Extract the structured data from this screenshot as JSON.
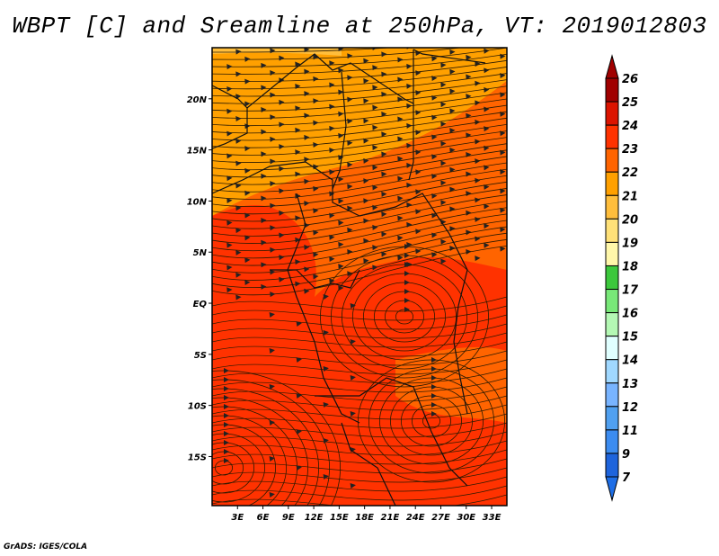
{
  "title": "WBPT [C] and Sreamline at 250hPa, VT: 2019012803",
  "credit": "GrADS: IGES/COLA",
  "map": {
    "lat_labels": [
      {
        "lat": 20,
        "text": "20N"
      },
      {
        "lat": 15,
        "text": "15N"
      },
      {
        "lat": 10,
        "text": "10N"
      },
      {
        "lat": 5,
        "text": "5N"
      },
      {
        "lat": 0,
        "text": "EQ"
      },
      {
        "lat": -5,
        "text": "5S"
      },
      {
        "lat": -10,
        "text": "10S"
      },
      {
        "lat": -15,
        "text": "15S"
      }
    ],
    "lon_labels": [
      {
        "lon": 3,
        "text": "3E"
      },
      {
        "lon": 6,
        "text": "6E"
      },
      {
        "lon": 9,
        "text": "9E"
      },
      {
        "lon": 12,
        "text": "12E"
      },
      {
        "lon": 15,
        "text": "15E"
      },
      {
        "lon": 18,
        "text": "18E"
      },
      {
        "lon": 21,
        "text": "21E"
      },
      {
        "lon": 24,
        "text": "24E"
      },
      {
        "lon": 27,
        "text": "27E"
      },
      {
        "lon": 30,
        "text": "30E"
      },
      {
        "lon": 33,
        "text": "33E"
      }
    ],
    "lon_range": [
      0,
      34.8
    ],
    "lat_range": [
      -19.8,
      25
    ]
  },
  "colorbar": {
    "labels": [
      "26",
      "25",
      "24",
      "23",
      "22",
      "21",
      "20",
      "19",
      "18",
      "17",
      "16",
      "15",
      "14",
      "13",
      "12",
      "11",
      "9",
      "7"
    ],
    "colors": [
      "#a00000",
      "#dc1400",
      "#ff3200",
      "#ff6400",
      "#ffa000",
      "#ffbe3c",
      "#ffe178",
      "#fff7aa",
      "#3cc83c",
      "#78e878",
      "#b4f8b4",
      "#e0ffff",
      "#a0d8ff",
      "#78b4ff",
      "#50a0f0",
      "#3c8cf0",
      "#1e64dc"
    ],
    "top_arrow_color": "#a00000",
    "bottom_arrow_color": "#1e6ee6"
  }
}
